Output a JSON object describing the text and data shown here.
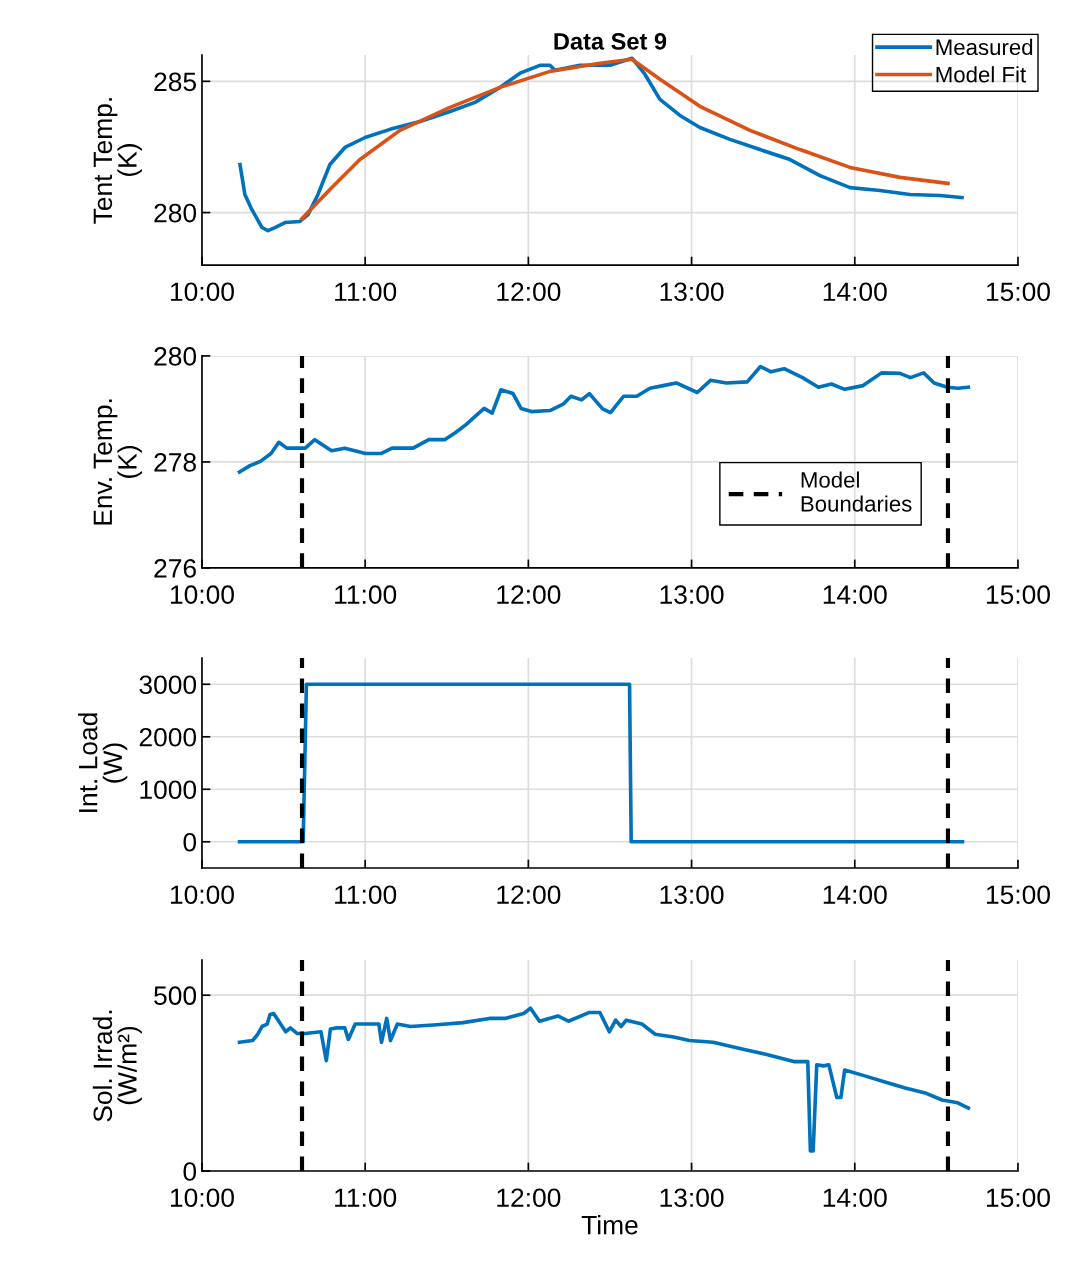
{
  "chart_data": [
    {
      "type": "line",
      "title": "Data Set 9",
      "ylabel": "Tent Temp.\n(K)",
      "xlim": [
        10,
        15
      ],
      "xticks": [
        {
          "value": 10,
          "label": "10:00"
        },
        {
          "value": 11,
          "label": "11:00"
        },
        {
          "value": 12,
          "label": "12:00"
        },
        {
          "value": 13,
          "label": "13:00"
        },
        {
          "value": 14,
          "label": "14:00"
        },
        {
          "value": 15,
          "label": "15:00"
        }
      ],
      "ylim": [
        278,
        286
      ],
      "yticks": [
        280,
        285
      ],
      "grid": true,
      "legend": "top right",
      "line_style": "solid",
      "marker": "none",
      "series": [
        {
          "name": "Measured",
          "color": "#0072bd",
          "x": [
            10.233,
            10.263,
            10.306,
            10.368,
            10.404,
            10.447,
            10.509,
            10.6,
            10.65,
            10.711,
            10.784,
            10.876,
            11.0,
            11.152,
            11.336,
            11.52,
            11.673,
            11.826,
            11.949,
            12.071,
            12.132,
            12.163,
            12.316,
            12.5,
            12.635,
            12.714,
            12.806,
            12.929,
            13.051,
            13.235,
            13.419,
            13.603,
            13.787,
            13.971,
            14.154,
            14.338,
            14.522,
            14.657
          ],
          "values": [
            281.83,
            280.69,
            280.11,
            279.43,
            279.31,
            279.43,
            279.62,
            279.66,
            279.92,
            280.69,
            281.83,
            282.48,
            282.86,
            283.17,
            283.47,
            283.85,
            284.2,
            284.77,
            285.31,
            285.61,
            285.61,
            285.42,
            285.61,
            285.61,
            285.88,
            285.27,
            284.31,
            283.7,
            283.24,
            282.79,
            282.4,
            282.02,
            281.41,
            280.95,
            280.84,
            280.69,
            280.65,
            280.57
          ]
        },
        {
          "name": "Model Fit",
          "color": "#d95319",
          "x": [
            10.613,
            10.784,
            10.968,
            11.213,
            11.52,
            11.826,
            12.132,
            12.439,
            12.635,
            12.806,
            13.051,
            13.358,
            13.664,
            13.971,
            14.277,
            14.571
          ],
          "values": [
            279.77,
            280.88,
            282.02,
            283.13,
            284.01,
            284.77,
            285.38,
            285.69,
            285.84,
            285.08,
            284.05,
            283.13,
            282.4,
            281.72,
            281.34,
            281.11
          ]
        }
      ]
    },
    {
      "type": "line",
      "ylabel": "Env. Temp.\n(K)",
      "xlim": [
        10,
        15
      ],
      "xticks": [
        {
          "value": 10,
          "label": "10:00"
        },
        {
          "value": 11,
          "label": "11:00"
        },
        {
          "value": 12,
          "label": "12:00"
        },
        {
          "value": 13,
          "label": "13:00"
        },
        {
          "value": 14,
          "label": "14:00"
        },
        {
          "value": 15,
          "label": "15:00"
        }
      ],
      "ylim": [
        276,
        280
      ],
      "yticks": [
        276,
        278,
        280
      ],
      "grid": true,
      "legend": "bottom right",
      "line_style": "solid",
      "marker": "none",
      "ref_lines": [
        {
          "axis": "x",
          "value": 10.613,
          "label": "Model\nBoundaries",
          "color": "#000000",
          "line_style": "dashed"
        },
        {
          "axis": "x",
          "value": 14.571,
          "color": "#000000",
          "line_style": "dashed"
        }
      ],
      "series": [
        {
          "color": "#0072bd",
          "x": [
            10.23,
            10.294,
            10.358,
            10.423,
            10.471,
            10.52,
            10.633,
            10.691,
            10.794,
            10.875,
            11.003,
            11.1,
            11.165,
            11.294,
            11.39,
            11.487,
            11.552,
            11.616,
            11.729,
            11.778,
            11.832,
            11.906,
            11.955,
            12.019,
            12.132,
            12.213,
            12.261,
            12.326,
            12.374,
            12.455,
            12.503,
            12.584,
            12.664,
            12.745,
            12.826,
            12.906,
            13.035,
            13.116,
            13.213,
            13.341,
            13.422,
            13.487,
            13.567,
            13.68,
            13.777,
            13.857,
            13.938,
            14.051,
            14.164,
            14.277,
            14.341,
            14.422,
            14.486,
            14.567,
            14.632,
            14.696
          ],
          "values": [
            277.81,
            277.93,
            278.01,
            278.16,
            278.37,
            278.26,
            278.26,
            278.42,
            278.21,
            278.26,
            278.16,
            278.16,
            278.26,
            278.26,
            278.42,
            278.42,
            278.55,
            278.7,
            279.01,
            278.92,
            279.36,
            279.29,
            279.01,
            278.95,
            278.97,
            279.09,
            279.24,
            279.17,
            279.29,
            279.0,
            278.93,
            279.24,
            279.24,
            279.39,
            279.44,
            279.49,
            279.31,
            279.54,
            279.49,
            279.51,
            279.8,
            279.7,
            279.76,
            279.59,
            279.41,
            279.47,
            279.37,
            279.44,
            279.68,
            279.67,
            279.59,
            279.68,
            279.49,
            279.41,
            279.39,
            279.41
          ]
        }
      ]
    },
    {
      "type": "line",
      "ylabel": "Int. Load\n(W)",
      "xlim": [
        10,
        15
      ],
      "xticks": [
        {
          "value": 10,
          "label": "10:00"
        },
        {
          "value": 11,
          "label": "11:00"
        },
        {
          "value": 12,
          "label": "12:00"
        },
        {
          "value": 13,
          "label": "13:00"
        },
        {
          "value": 14,
          "label": "14:00"
        },
        {
          "value": 15,
          "label": "15:00"
        }
      ],
      "ylim": [
        -500,
        3500
      ],
      "yticks": [
        0,
        1000,
        2000,
        3000
      ],
      "grid": true,
      "line_style": "solid",
      "marker": "none",
      "ref_lines": [
        {
          "axis": "x",
          "value": 10.613,
          "color": "#000000",
          "line_style": "dashed"
        },
        {
          "axis": "x",
          "value": 14.571,
          "color": "#000000",
          "line_style": "dashed"
        }
      ],
      "series": [
        {
          "color": "#0072bd",
          "x": [
            10.23,
            10.62,
            10.64,
            12.62,
            12.63,
            14.66
          ],
          "values": [
            0,
            0,
            3000,
            3000,
            0,
            0
          ]
        }
      ]
    },
    {
      "type": "line",
      "ylabel": "Sol. Irrad.\n(W/m²)",
      "xlabel": "Time",
      "xlim": [
        10,
        15
      ],
      "xticks": [
        {
          "value": 10,
          "label": "10:00"
        },
        {
          "value": 11,
          "label": "11:00"
        },
        {
          "value": 12,
          "label": "12:00"
        },
        {
          "value": 13,
          "label": "13:00"
        },
        {
          "value": 14,
          "label": "14:00"
        },
        {
          "value": 15,
          "label": "15:00"
        }
      ],
      "ylim": [
        0,
        600
      ],
      "yticks": [
        0,
        500
      ],
      "grid": true,
      "line_style": "solid",
      "marker": "none",
      "ref_lines": [
        {
          "axis": "x",
          "value": 10.613,
          "color": "#000000",
          "line_style": "dashed"
        },
        {
          "axis": "x",
          "value": 14.571,
          "color": "#000000",
          "line_style": "dashed"
        }
      ],
      "series": [
        {
          "color": "#0072bd",
          "x": [
            10.23,
            10.31,
            10.342,
            10.368,
            10.4,
            10.417,
            10.439,
            10.471,
            10.513,
            10.542,
            10.584,
            10.633,
            10.729,
            10.762,
            10.787,
            10.826,
            10.875,
            10.897,
            10.939,
            11.084,
            11.1,
            11.132,
            11.155,
            11.197,
            11.278,
            11.439,
            11.6,
            11.761,
            11.858,
            11.971,
            12.013,
            12.068,
            12.181,
            12.245,
            12.374,
            12.438,
            12.496,
            12.535,
            12.568,
            12.6,
            12.696,
            12.777,
            12.89,
            12.987,
            13.132,
            13.309,
            13.454,
            13.632,
            13.712,
            13.728,
            13.745,
            13.767,
            13.809,
            13.841,
            13.89,
            13.915,
            13.938,
            14.051,
            14.18,
            14.309,
            14.438,
            14.535,
            14.631,
            14.696
          ],
          "values": [
            366,
            371,
            389,
            411,
            418,
            445,
            448,
            426,
            396,
            407,
            391,
            391,
            396,
            314,
            404,
            407,
            407,
            374,
            418,
            418,
            366,
            434,
            371,
            418,
            411,
            416,
            422,
            434,
            434,
            448,
            463,
            426,
            441,
            426,
            451,
            451,
            396,
            429,
            411,
            429,
            418,
            389,
            381,
            371,
            366,
            347,
            332,
            311,
            311,
            57,
            57,
            302,
            299,
            302,
            209,
            209,
            287,
            272,
            254,
            236,
            221,
            202,
            194,
            179
          ]
        }
      ]
    }
  ]
}
